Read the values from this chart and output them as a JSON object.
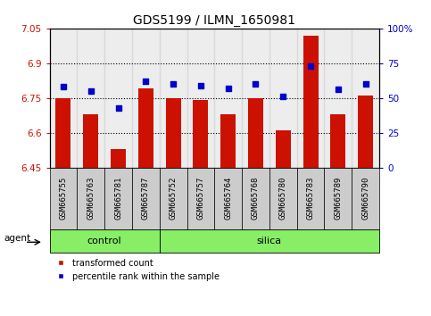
{
  "title": "GDS5199 / ILMN_1650981",
  "samples": [
    "GSM665755",
    "GSM665763",
    "GSM665781",
    "GSM665787",
    "GSM665752",
    "GSM665757",
    "GSM665764",
    "GSM665768",
    "GSM665780",
    "GSM665783",
    "GSM665789",
    "GSM665790"
  ],
  "red_values": [
    6.75,
    6.68,
    6.53,
    6.79,
    6.75,
    6.74,
    6.68,
    6.75,
    6.61,
    7.02,
    6.68,
    6.76
  ],
  "blue_values": [
    58,
    55,
    43,
    62,
    60,
    59,
    57,
    60,
    51,
    73,
    56,
    60
  ],
  "groups": [
    {
      "label": "control",
      "start": 0,
      "end": 3
    },
    {
      "label": "silica",
      "start": 4,
      "end": 11
    }
  ],
  "ylim_left": [
    6.45,
    7.05
  ],
  "ylim_right": [
    0,
    100
  ],
  "yticks_left": [
    6.45,
    6.6,
    6.75,
    6.9,
    7.05
  ],
  "ytick_labels_left": [
    "6.45",
    "6.6",
    "6.75",
    "6.9",
    "7.05"
  ],
  "yticks_right": [
    0,
    25,
    50,
    75,
    100
  ],
  "ytick_labels_right": [
    "0",
    "25",
    "50",
    "75",
    "100%"
  ],
  "hlines": [
    6.6,
    6.75,
    6.9
  ],
  "bar_color": "#cc1100",
  "dot_color": "#0000cc",
  "bar_width": 0.55,
  "agent_label": "agent",
  "legend_items": [
    {
      "label": "transformed count",
      "color": "#cc1100"
    },
    {
      "label": "percentile rank within the sample",
      "color": "#0000cc"
    }
  ],
  "group_color": "#88ee66",
  "xtick_bg_color": "#cccccc",
  "title_fontsize": 10,
  "tick_fontsize": 7.5,
  "xtick_fontsize": 6.5
}
